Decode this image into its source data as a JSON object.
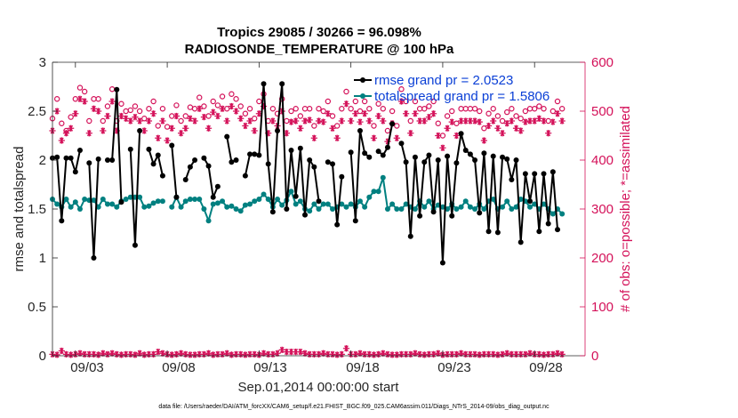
{
  "chart_data": {
    "type": "line",
    "title": "Tropics 29085 / 30266 = 96.098%",
    "subtitle": "RADIOSONDE_TEMPERATURE @ 100 hPa",
    "xlabel": "Sep.01,2014 00:00:00 start",
    "ylabel_left": "rmse and totalspread",
    "ylabel_right": "# of obs: o=possible; *=assimilated",
    "footer": "data file: /Users/raeder/DAI/ATM_forcXX/CAM6_setup/f.e21.FHIST_BGC.f09_025.CAM6assim.011/Diags_NTrS_2014-09/obs_diag_output.nc",
    "x_tick_labels": [
      "09/03",
      "09/08",
      "09/13",
      "09/18",
      "09/23",
      "09/28"
    ],
    "x_ticks_day": [
      3,
      8,
      13,
      18,
      23,
      28
    ],
    "xlim_day": [
      1.75,
      30.75
    ],
    "ylim_left": [
      0,
      3
    ],
    "yticks_left": [
      "0",
      "0.5",
      "1",
      "1.5",
      "2",
      "2.5",
      "3"
    ],
    "ylim_right": [
      0,
      600
    ],
    "yticks_right": [
      "0",
      "100",
      "200",
      "300",
      "400",
      "500",
      "600"
    ],
    "x_start_day": 1.75,
    "x_step_day": 0.25,
    "colors": {
      "rmse": "#000000",
      "spread": "#008080",
      "obs": "#D41159",
      "legend_text": "#0a3fd6",
      "axis": "#262626"
    },
    "series": [
      {
        "name": "rmse grand pr = 2.0523",
        "axis": "left",
        "values": [
          2.02,
          2.03,
          1.38,
          2.02,
          2.02,
          1.88,
          2.1,
          null,
          1.97,
          1.0,
          2.01,
          null,
          2.0,
          2.0,
          2.72,
          1.57,
          null,
          2.11,
          1.13,
          2.3,
          null,
          2.11,
          1.96,
          2.05,
          1.84,
          null,
          2.15,
          1.62,
          null,
          1.8,
          1.93,
          2.0,
          null,
          2.02,
          1.94,
          1.62,
          1.73,
          null,
          2.24,
          1.98,
          2.0,
          null,
          1.84,
          2.06,
          2.06,
          2.05,
          2.78,
          1.96,
          1.47,
          2.3,
          2.78,
          1.5,
          2.1,
          1.63,
          2.12,
          1.44,
          2.0,
          1.93,
          1.58,
          null,
          1.98,
          1.96,
          1.34,
          1.83,
          null,
          2.08,
          1.38,
          2.3,
          2.07,
          2.03,
          null,
          2.09,
          2.05,
          2.13,
          2.37,
          null,
          2.17,
          1.98,
          1.22,
          2.03,
          1.43,
          1.98,
          2.05,
          1.47,
          2.0,
          0.95,
          2.04,
          1.43,
          1.97,
          2.27,
          2.1,
          2.06,
          2.0,
          1.46,
          2.07,
          1.27,
          2.04,
          1.26,
          2.03,
          2.01,
          1.8,
          2.0,
          1.16,
          1.86,
          1.58,
          1.86,
          1.27,
          1.86,
          1.35,
          1.88,
          1.29
        ]
      },
      {
        "name": "totalspread grand pr = 1.5806",
        "axis": "left",
        "values": [
          1.6,
          1.55,
          1.52,
          1.6,
          1.52,
          1.57,
          1.5,
          1.6,
          1.59,
          1.59,
          1.52,
          1.6,
          1.55,
          1.55,
          1.52,
          1.58,
          1.6,
          1.62,
          1.62,
          1.62,
          1.52,
          1.53,
          1.56,
          1.58,
          1.58,
          null,
          1.52,
          1.62,
          1.52,
          1.58,
          1.6,
          1.6,
          1.6,
          1.5,
          1.38,
          1.55,
          1.56,
          1.58,
          1.52,
          1.53,
          1.5,
          1.48,
          1.54,
          1.55,
          1.58,
          1.6,
          1.65,
          1.6,
          1.52,
          1.6,
          1.54,
          1.59,
          1.68,
          1.55,
          1.58,
          1.5,
          1.48,
          1.55,
          1.5,
          1.55,
          1.55,
          1.5,
          1.52,
          1.55,
          1.52,
          1.55,
          1.52,
          1.58,
          1.52,
          1.62,
          1.68,
          1.68,
          1.82,
          1.5,
          1.55,
          1.5,
          1.5,
          1.55,
          1.52,
          1.5,
          1.58,
          1.52,
          1.58,
          1.5,
          1.54,
          1.52,
          1.5,
          1.55,
          1.5,
          1.52,
          1.58,
          1.52,
          1.5,
          1.55,
          1.5,
          1.58,
          1.6,
          1.5,
          1.52,
          1.58,
          1.5,
          1.52,
          1.6,
          1.58,
          1.52,
          1.55,
          1.5,
          1.55,
          1.5,
          1.45,
          1.5,
          1.45
        ]
      },
      {
        "name": "possible obs count",
        "axis": "right",
        "marker": "o",
        "values": [
          485,
          525,
          475,
          460,
          488,
          525,
          548,
          540,
          480,
          525,
          525,
          480,
          510,
          545,
          480,
          515,
          500,
          502,
          510,
          500,
          485,
          505,
          520,
          470,
          505,
          468,
          490,
          512,
          480,
          490,
          508,
          505,
          528,
          510,
          490,
          520,
          512,
          530,
          505,
          535,
          525,
          510,
          495,
          505,
          485,
          520,
          535,
          480,
          505,
          495,
          525,
          480,
          500,
          505,
          490,
          505,
          505,
          470,
          505,
          500,
          520,
          490,
          470,
          505,
          540,
          505,
          520,
          500,
          520,
          505,
          470,
          515,
          505,
          460,
          500,
          470,
          545,
          520,
          480,
          520,
          505,
          505,
          510,
          520,
          475,
          450,
          490,
          500,
          475,
          505,
          505,
          505,
          505,
          500,
          465,
          495,
          505,
          490,
          480,
          498,
          505,
          490,
          485,
          500,
          505,
          505,
          510,
          505,
          480,
          500,
          520,
          505
        ]
      },
      {
        "name": "assimilated obs count",
        "axis": "right",
        "marker": "*",
        "values": [
          460,
          500,
          440,
          455,
          465,
          495,
          525,
          520,
          455,
          505,
          500,
          460,
          490,
          520,
          460,
          490,
          485,
          480,
          488,
          480,
          460,
          480,
          495,
          445,
          480,
          440,
          465,
          490,
          455,
          465,
          485,
          480,
          505,
          488,
          465,
          498,
          490,
          505,
          480,
          510,
          500,
          485,
          470,
          480,
          460,
          495,
          510,
          455,
          480,
          470,
          500,
          455,
          478,
          480,
          465,
          480,
          482,
          445,
          480,
          478,
          495,
          465,
          445,
          480,
          515,
          480,
          495,
          478,
          495,
          480,
          445,
          490,
          480,
          438,
          475,
          445,
          520,
          495,
          455,
          495,
          480,
          480,
          488,
          495,
          450,
          425,
          465,
          478,
          450,
          480,
          480,
          480,
          480,
          478,
          440,
          470,
          480,
          465,
          455,
          475,
          480,
          465,
          460,
          478,
          480,
          480,
          485,
          480,
          455,
          478,
          495,
          480
        ]
      },
      {
        "name": "rejected obs count (bottom)",
        "axis": "right",
        "marker": "*",
        "values": [
          3,
          2,
          10,
          3,
          2,
          3,
          5,
          3,
          3,
          3,
          2,
          5,
          3,
          5,
          3,
          2,
          3,
          3,
          2,
          5,
          2,
          3,
          3,
          8,
          5,
          3,
          2,
          3,
          5,
          3,
          2,
          2,
          3,
          3,
          5,
          2,
          3,
          3,
          5,
          2,
          3,
          3,
          2,
          3,
          3,
          2,
          5,
          3,
          3,
          5,
          12,
          8,
          8,
          8,
          8,
          5,
          3,
          3,
          3,
          5,
          3,
          3,
          2,
          3,
          15,
          3,
          3,
          5,
          3,
          3,
          2,
          3,
          5,
          3,
          2,
          2,
          3,
          3,
          3,
          5,
          3,
          2,
          3,
          3,
          5,
          2,
          3,
          3,
          3,
          5,
          3,
          3,
          3,
          2,
          3,
          3,
          3,
          2,
          3,
          5,
          3,
          3,
          3,
          3,
          5,
          3,
          3,
          2,
          3,
          3,
          5,
          3
        ]
      }
    ]
  }
}
